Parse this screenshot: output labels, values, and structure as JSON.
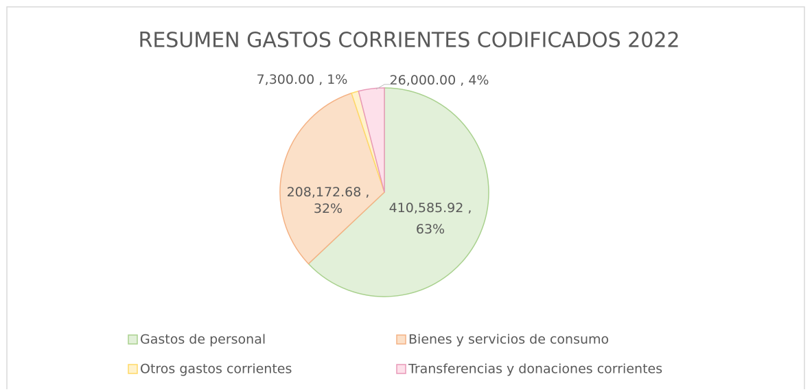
{
  "chart_data": {
    "type": "pie",
    "title": "RESUMEN GASTOS CORRIENTES CODIFICADOS 2022",
    "categories": [
      "Gastos de personal",
      "Bienes y servicios de consumo",
      "Otros gastos corrientes",
      "Transferencias y donaciones corrientes"
    ],
    "values": [
      410585.92,
      208172.68,
      7300.0,
      26000.0
    ],
    "value_labels": [
      [
        "410,585.92 ,",
        "63%"
      ],
      [
        "208,172.68 ,",
        "32%"
      ],
      [
        "7,300.00 , 1%"
      ],
      [
        "26,000.00 , 4%"
      ]
    ],
    "colors": [
      "#e2f0d9",
      "#fbe0c8",
      "#fff2cc",
      "#fde0ea"
    ],
    "edge_colors": [
      "#a9d18e",
      "#f4b183",
      "#ffd966",
      "#e899b8"
    ],
    "legend": "bottom"
  }
}
